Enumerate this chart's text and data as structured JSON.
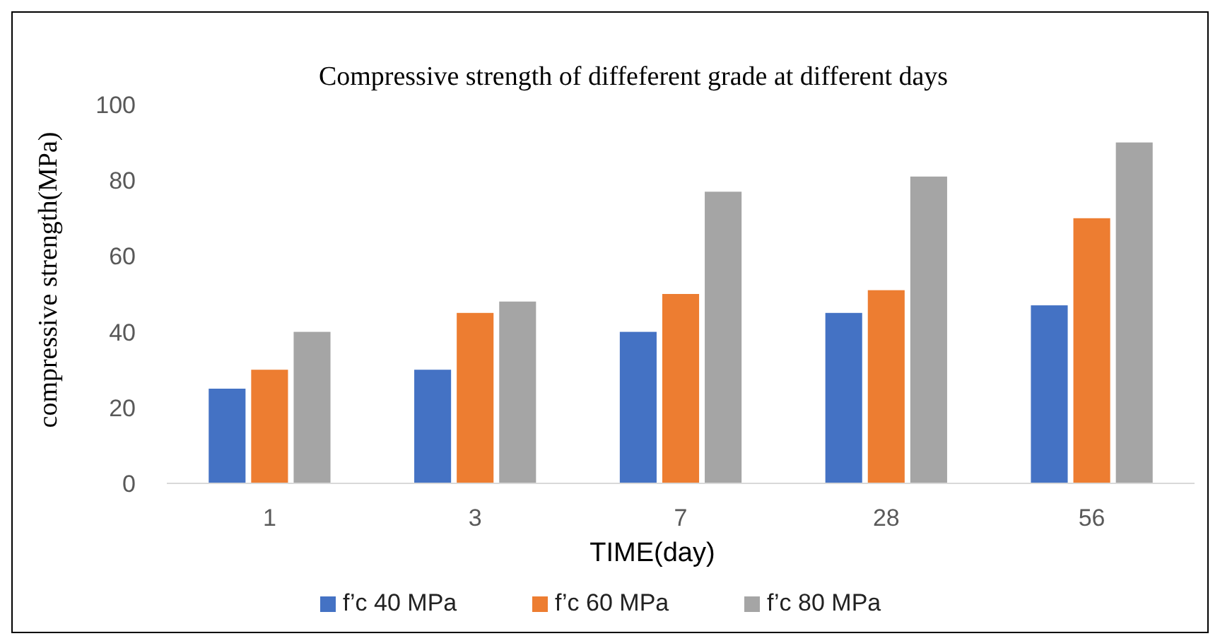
{
  "chart_data": {
    "type": "bar",
    "title": "Compressive strength of diffeferent grade at different days",
    "xlabel": "TIME(day)",
    "ylabel": "compressive strength(MPa)",
    "categories": [
      "1",
      "3",
      "7",
      "28",
      "56"
    ],
    "series": [
      {
        "name": "f’c 40 MPa",
        "color": "#4472c4",
        "values": [
          25,
          30,
          40,
          45,
          47
        ]
      },
      {
        "name": "f’c 60 MPa",
        "color": "#ed7d31",
        "values": [
          30,
          45,
          50,
          51,
          70
        ]
      },
      {
        "name": "f’c 80 MPa",
        "color": "#a5a5a5",
        "values": [
          40,
          48,
          77,
          81,
          90
        ]
      }
    ],
    "ylim": [
      0,
      100
    ],
    "yticks": [
      0,
      20,
      40,
      60,
      80,
      100
    ],
    "grid": false,
    "legend": "bottom"
  }
}
